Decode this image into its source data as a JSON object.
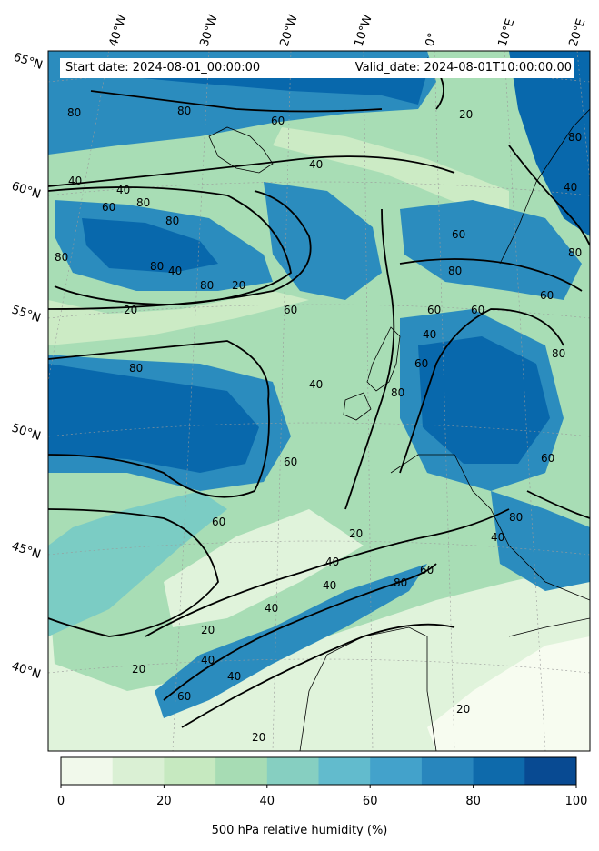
{
  "map": {
    "start_date": "Start date: 2024-08-01_00:00:00",
    "valid_date": "Valid_date: 2024-08-01T10:00:00.00",
    "lon_ticks": [
      "40°W",
      "30°W",
      "20°W",
      "10°W",
      "0°",
      "10°E",
      "20°E"
    ],
    "lat_ticks": [
      "65°N",
      "60°N",
      "55°N",
      "50°N",
      "45°N",
      "40°N"
    ],
    "contour_levels": [
      "20",
      "40",
      "60",
      "80"
    ],
    "colormap": [
      "#f7fcf0",
      "#e0f3db",
      "#ccebc5",
      "#a8ddb5",
      "#7bccc4",
      "#4eb3d3",
      "#2b8cbe",
      "#0868ac",
      "#084081"
    ]
  },
  "colorbar": {
    "label": "500 hPa relative humidity (%)",
    "ticks": [
      "0",
      "20",
      "40",
      "60",
      "80",
      "100"
    ],
    "colors": [
      "#f1f9eb",
      "#daf0d4",
      "#c6e9c0",
      "#a7dcb4",
      "#86cfc1",
      "#62bbcd",
      "#43a2cb",
      "#2886bd",
      "#0e6aab",
      "#084a92"
    ]
  }
}
